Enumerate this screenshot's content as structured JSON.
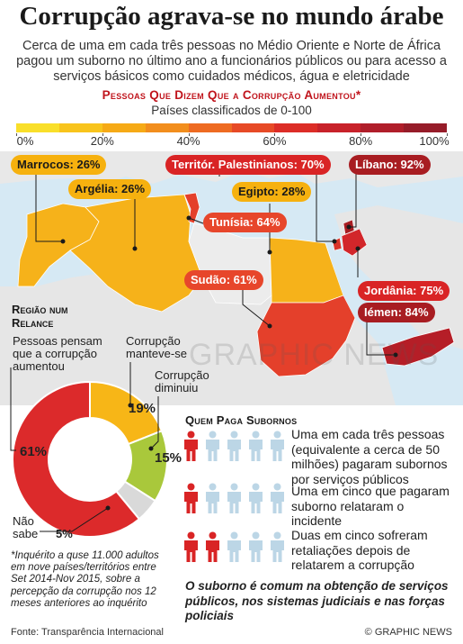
{
  "title": "Corrupção agrava-se no mundo árabe",
  "subtitle": "Cerca de uma em cada três pessoas no Médio Oriente e Norte de África pagou um suborno no último ano a funcionários públicos ou para acesso a serviços básicos como cuidados médicos, água e eletricidade",
  "scale": {
    "title": "Pessoas Que Dizem Que a Corrupção Aumentou*",
    "subtitle": "Países classificados de 0-100",
    "ticks": [
      "0%",
      "20%",
      "40%",
      "60%",
      "80%",
      "100%"
    ],
    "colors": [
      "#f9df2a",
      "#f8c41c",
      "#f6aa16",
      "#f28e1d",
      "#ee6b22",
      "#e74a26",
      "#dc2d27",
      "#c8222a",
      "#b01e2a",
      "#961c29"
    ]
  },
  "map": {
    "countries": [
      {
        "name": "Marrocos",
        "value": 26,
        "label": "Marrocos: 26%"
      },
      {
        "name": "Argélia",
        "value": 26,
        "label": "Argélia: 26%"
      },
      {
        "name": "Territór. Palestinianos",
        "value": 70,
        "label": "Territór. Palestinianos: 70%"
      },
      {
        "name": "Líbano",
        "value": 92,
        "label": "Líbano: 92%"
      },
      {
        "name": "Egipto",
        "value": 28,
        "label": "Egipto: 28%"
      },
      {
        "name": "Tunísia",
        "value": 64,
        "label": "Tunísia: 64%"
      },
      {
        "name": "Sudão",
        "value": 61,
        "label": "Sudão: 61%"
      },
      {
        "name": "Jordânia",
        "value": 75,
        "label": "Jordânia: 75%"
      },
      {
        "name": "Iémen",
        "value": 84,
        "label": "Iémen: 84%"
      }
    ]
  },
  "region": {
    "title": "Região num Relance",
    "labels": {
      "increased": "Pessoas pensam que a corrupção aumentou",
      "same": "Corrupção manteve-se",
      "decreased": "Corrupção diminuiu",
      "unknown": "Não sabe"
    }
  },
  "chart_data": {
    "type": "pie",
    "title": "Região num Relance",
    "categories": [
      "Pessoas pensam que a corrupção aumentou",
      "Corrupção manteve-se",
      "Corrupção diminuiu",
      "Não sabe"
    ],
    "values": [
      61,
      19,
      15,
      5
    ],
    "labels": [
      "61%",
      "19%",
      "15%",
      "5%"
    ],
    "colors": [
      "#dc2a2b",
      "#f7b617",
      "#a9c83b",
      "#d9d9d9"
    ]
  },
  "footnote": "*Inquérito a quse 11.000 adultos em nove países/territórios entre Set 2014-Nov 2015, sobre a percepção da corrupção nos 12 meses anteriores ao inquérito",
  "source": "Fonte: Transparência Internacional",
  "credit": "© GRAPHIC NEWS",
  "watermark": "GRAPHIC NEWS",
  "who_pays": {
    "title": "Quem Paga Subornos",
    "rows": [
      {
        "text": "Uma em cada três pessoas (equivalente a cerca de 50 milhões) pagaram subornos por serviços públicos",
        "filled": 1
      },
      {
        "text": "Uma em cinco que pagaram suborno relataram o incidente",
        "filled": 1
      },
      {
        "text": "Duas em cinco sofreram retaliações depois de relatarem a corrupção",
        "filled": 2
      }
    ],
    "closing": "O suborno é comum na obtenção de serviços públicos, nos sistemas judiciais e nas forças policiais",
    "colors": {
      "filled": "#d92425",
      "empty": "#bcd6e6"
    }
  }
}
